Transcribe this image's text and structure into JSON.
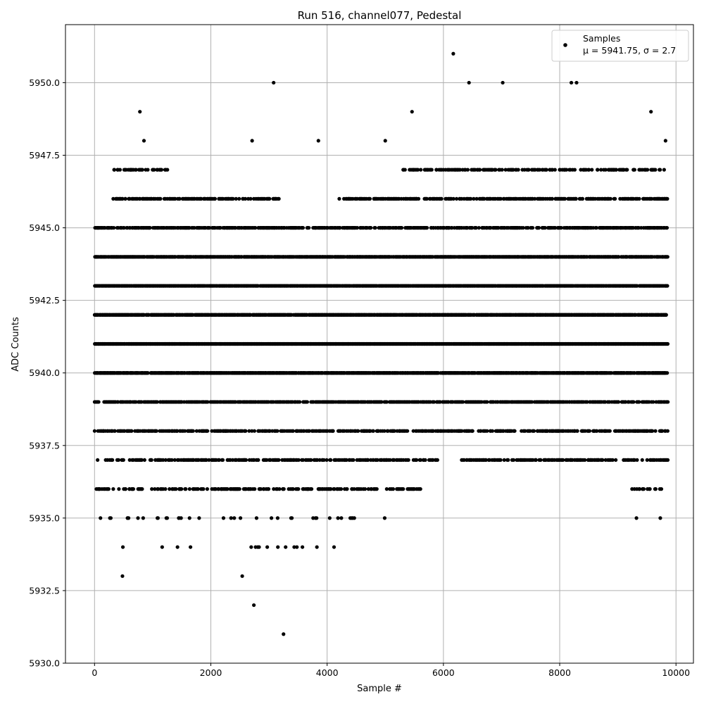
{
  "chart_data": {
    "type": "scatter",
    "title": "Run 516, channel077, Pedestal",
    "xlabel": "Sample #",
    "ylabel": "ADC Counts",
    "xlim": [
      -500,
      10300
    ],
    "ylim": [
      5930,
      5952
    ],
    "xticks": [
      0,
      2000,
      4000,
      6000,
      8000,
      10000
    ],
    "xtick_labels": [
      "0",
      "2000",
      "4000",
      "6000",
      "8000",
      "10000"
    ],
    "yticks": [
      5930,
      5932.5,
      5935,
      5937.5,
      5940,
      5942.5,
      5945,
      5947.5,
      5950
    ],
    "ytick_labels": [
      "5930.0",
      "5932.5",
      "5935.0",
      "5937.5",
      "5940.0",
      "5942.5",
      "5945.0",
      "5947.5",
      "5950.0"
    ],
    "grid": true,
    "legend_position": "top-right",
    "marker_color": "#000000",
    "n_samples": 9850,
    "series": [
      {
        "name": "Samples",
        "stats_label": "μ = 5941.75, σ = 2.7",
        "mean": 5941.75,
        "sigma": 2.7
      }
    ],
    "notable_points": [
      {
        "x": 6170,
        "y": 5951
      },
      {
        "x": 3080,
        "y": 5950
      },
      {
        "x": 7020,
        "y": 5950
      },
      {
        "x": 8200,
        "y": 5950
      },
      {
        "x": 8290,
        "y": 5950
      },
      {
        "x": 6440,
        "y": 5950
      },
      {
        "x": 780,
        "y": 5949
      },
      {
        "x": 5460,
        "y": 5949
      },
      {
        "x": 9570,
        "y": 5949
      },
      {
        "x": 850,
        "y": 5948
      },
      {
        "x": 2710,
        "y": 5948
      },
      {
        "x": 3850,
        "y": 5948
      },
      {
        "x": 5000,
        "y": 5948
      },
      {
        "x": 9820,
        "y": 5948
      },
      {
        "x": 2540,
        "y": 5933
      },
      {
        "x": 480,
        "y": 5933
      },
      {
        "x": 2740,
        "y": 5932
      },
      {
        "x": 3250,
        "y": 5931
      },
      {
        "x": 4990,
        "y": 5935
      },
      {
        "x": 9320,
        "y": 5935
      },
      {
        "x": 9730,
        "y": 5935
      },
      {
        "x": 1650,
        "y": 5934
      },
      {
        "x": 2830,
        "y": 5934
      },
      {
        "x": 3480,
        "y": 5934
      }
    ],
    "level_density": [
      {
        "y": 5947,
        "x_ranges": [
          [
            300,
            1300
          ],
          [
            5300,
            9800
          ]
        ],
        "density": 0.35
      },
      {
        "y": 5946,
        "x_ranges": [
          [
            300,
            3200
          ],
          [
            4200,
            9850
          ]
        ],
        "density": 0.45
      },
      {
        "y": 5945,
        "x_ranges": [
          [
            0,
            9850
          ]
        ],
        "density": 0.6
      },
      {
        "y": 5944,
        "x_ranges": [
          [
            0,
            9850
          ]
        ],
        "density": 0.85
      },
      {
        "y": 5943,
        "x_ranges": [
          [
            0,
            9850
          ]
        ],
        "density": 0.9
      },
      {
        "y": 5942,
        "x_ranges": [
          [
            0,
            9850
          ]
        ],
        "density": 0.9
      },
      {
        "y": 5941,
        "x_ranges": [
          [
            0,
            9850
          ]
        ],
        "density": 0.95
      },
      {
        "y": 5940,
        "x_ranges": [
          [
            0,
            9850
          ]
        ],
        "density": 0.85
      },
      {
        "y": 5939,
        "x_ranges": [
          [
            0,
            9850
          ]
        ],
        "density": 0.6
      },
      {
        "y": 5938,
        "x_ranges": [
          [
            0,
            9850
          ]
        ],
        "density": 0.45
      },
      {
        "y": 5937,
        "x_ranges": [
          [
            50,
            5900
          ],
          [
            6300,
            9850
          ]
        ],
        "density": 0.35
      },
      {
        "y": 5936,
        "x_ranges": [
          [
            0,
            5600
          ],
          [
            9200,
            9750
          ]
        ],
        "density": 0.3
      },
      {
        "y": 5935,
        "x_ranges": [
          [
            50,
            4500
          ]
        ],
        "density": 0.1
      },
      {
        "y": 5934,
        "x_ranges": [
          [
            450,
            4250
          ]
        ],
        "density": 0.04
      }
    ]
  }
}
